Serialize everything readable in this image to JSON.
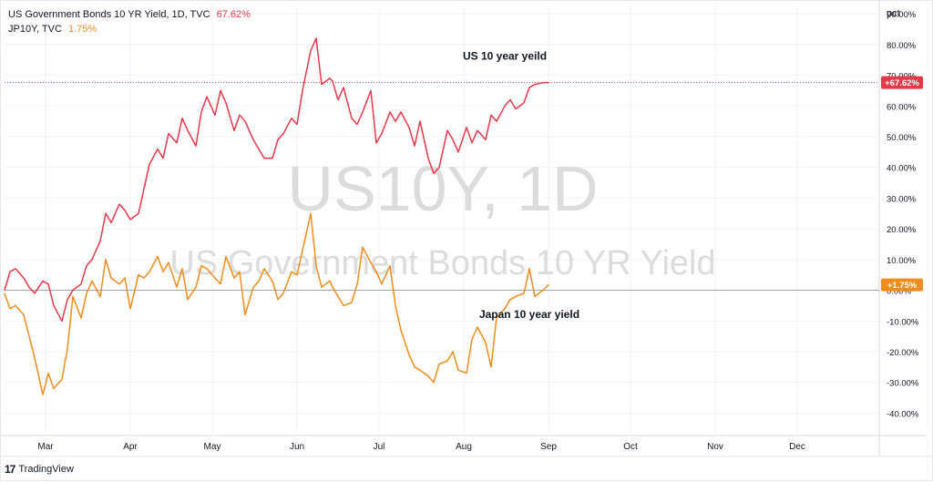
{
  "legend": {
    "us_label": "US Government Bonds 10 YR Yield, 1D, TVC",
    "us_value": "67.62%",
    "jp_label": "JP10Y, TVC",
    "jp_value": "1.75%"
  },
  "axis_unit": "pct",
  "brand": "TradingView",
  "watermark": {
    "line1": "US10Y, 1D",
    "line2": "US Government Bonds 10 YR Yield"
  },
  "colors": {
    "us": "#e5394a",
    "jp": "#f08c1e",
    "grid": "#f0f3fa",
    "axis_text": "#131722",
    "watermark": "#dcdcdc"
  },
  "chart_data": {
    "type": "line",
    "title": "",
    "xlabel": "",
    "ylabel": "pct",
    "ylim": [
      -47,
      93
    ],
    "y_ticks": [
      -40,
      -30,
      -20,
      -10,
      0,
      10,
      20,
      30,
      40,
      50,
      60,
      70,
      80,
      90
    ],
    "y_tick_labels": [
      "-40.00%",
      "-30.00%",
      "-20.00%",
      "-10.00%",
      "0.00%",
      "10.00%",
      "20.00%",
      "30.00%",
      "40.00%",
      "50.00%",
      "60.00%",
      "70.00%",
      "80.00%",
      "90.00%"
    ],
    "x_tick_labels": [
      "Mar",
      "Apr",
      "May",
      "Jun",
      "Jul",
      "Aug",
      "Sep",
      "Oct",
      "Nov",
      "Dec"
    ],
    "x_tick_dates": [
      "2022-03-01",
      "2022-04-01",
      "2022-05-01",
      "2022-06-01",
      "2022-07-01",
      "2022-08-01",
      "2022-09-01",
      "2022-10-01",
      "2022-11-01",
      "2022-12-01"
    ],
    "xlim": [
      "2022-02-14",
      "2022-12-31"
    ],
    "grid": true,
    "price_labels": [
      {
        "series": "US10Y",
        "text": "+67.62%",
        "value": 67.62
      },
      {
        "series": "JP10Y",
        "text": "+1.75%",
        "value": 1.75
      }
    ],
    "annotations": [
      {
        "text": "US 10 year yeild",
        "x": "2022-08-16",
        "y": 75
      },
      {
        "text": "Japan 10 year yield",
        "x": "2022-08-25",
        "y": -9
      }
    ],
    "series": [
      {
        "name": "US Government Bonds 10 YR Yield",
        "x": [
          "2022-02-14",
          "2022-02-16",
          "2022-02-18",
          "2022-02-21",
          "2022-02-23",
          "2022-02-25",
          "2022-02-28",
          "2022-03-02",
          "2022-03-04",
          "2022-03-07",
          "2022-03-09",
          "2022-03-11",
          "2022-03-14",
          "2022-03-16",
          "2022-03-18",
          "2022-03-21",
          "2022-03-23",
          "2022-03-25",
          "2022-03-28",
          "2022-03-30",
          "2022-04-01",
          "2022-04-04",
          "2022-04-06",
          "2022-04-08",
          "2022-04-11",
          "2022-04-13",
          "2022-04-15",
          "2022-04-18",
          "2022-04-20",
          "2022-04-22",
          "2022-04-25",
          "2022-04-27",
          "2022-04-29",
          "2022-05-02",
          "2022-05-04",
          "2022-05-06",
          "2022-05-09",
          "2022-05-11",
          "2022-05-13",
          "2022-05-16",
          "2022-05-18",
          "2022-05-20",
          "2022-05-23",
          "2022-05-25",
          "2022-05-27",
          "2022-05-30",
          "2022-06-01",
          "2022-06-03",
          "2022-06-06",
          "2022-06-08",
          "2022-06-10",
          "2022-06-13",
          "2022-06-14",
          "2022-06-16",
          "2022-06-18",
          "2022-06-21",
          "2022-06-23",
          "2022-06-25",
          "2022-06-28",
          "2022-06-30",
          "2022-07-02",
          "2022-07-05",
          "2022-07-07",
          "2022-07-09",
          "2022-07-12",
          "2022-07-14",
          "2022-07-16",
          "2022-07-19",
          "2022-07-21",
          "2022-07-23",
          "2022-07-26",
          "2022-07-28",
          "2022-07-30",
          "2022-08-02",
          "2022-08-04",
          "2022-08-06",
          "2022-08-09",
          "2022-08-11",
          "2022-08-13",
          "2022-08-16",
          "2022-08-18",
          "2022-08-20",
          "2022-08-23",
          "2022-08-25",
          "2022-08-27",
          "2022-08-30",
          "2022-09-01"
        ],
        "values": [
          0,
          6,
          7,
          4,
          1,
          -1,
          3,
          2,
          -5,
          -10,
          -3,
          0,
          2,
          8,
          10,
          16,
          25,
          22,
          28,
          26,
          23,
          25,
          33,
          41,
          46,
          43,
          51,
          48,
          56,
          52,
          47,
          58,
          63,
          57,
          65,
          61,
          52,
          57,
          55,
          49,
          46,
          43,
          43,
          49,
          51,
          56,
          54,
          65,
          78,
          82,
          67,
          69,
          68,
          62,
          66,
          56,
          54,
          58,
          65,
          48,
          51,
          58,
          55,
          58,
          53,
          47,
          55,
          43,
          38,
          40,
          52,
          49,
          45,
          53,
          48,
          52,
          49,
          57,
          55,
          60,
          62,
          59,
          61,
          66,
          67,
          67.62,
          67.62
        ]
      },
      {
        "name": "JP10Y",
        "x": [
          "2022-02-14",
          "2022-02-16",
          "2022-02-18",
          "2022-02-21",
          "2022-02-23",
          "2022-02-25",
          "2022-02-28",
          "2022-03-02",
          "2022-03-04",
          "2022-03-07",
          "2022-03-09",
          "2022-03-11",
          "2022-03-14",
          "2022-03-16",
          "2022-03-18",
          "2022-03-21",
          "2022-03-23",
          "2022-03-25",
          "2022-03-28",
          "2022-03-30",
          "2022-04-01",
          "2022-04-04",
          "2022-04-06",
          "2022-04-08",
          "2022-04-11",
          "2022-04-13",
          "2022-04-15",
          "2022-04-18",
          "2022-04-20",
          "2022-04-22",
          "2022-04-25",
          "2022-04-27",
          "2022-04-29",
          "2022-05-02",
          "2022-05-04",
          "2022-05-06",
          "2022-05-09",
          "2022-05-11",
          "2022-05-13",
          "2022-05-16",
          "2022-05-18",
          "2022-05-20",
          "2022-05-23",
          "2022-05-25",
          "2022-05-27",
          "2022-05-30",
          "2022-06-01",
          "2022-06-03",
          "2022-06-06",
          "2022-06-08",
          "2022-06-10",
          "2022-06-13",
          "2022-06-14",
          "2022-06-16",
          "2022-06-18",
          "2022-06-21",
          "2022-06-23",
          "2022-06-25",
          "2022-06-28",
          "2022-06-30",
          "2022-07-02",
          "2022-07-05",
          "2022-07-07",
          "2022-07-09",
          "2022-07-12",
          "2022-07-14",
          "2022-07-16",
          "2022-07-19",
          "2022-07-21",
          "2022-07-23",
          "2022-07-26",
          "2022-07-28",
          "2022-07-30",
          "2022-08-02",
          "2022-08-04",
          "2022-08-06",
          "2022-08-09",
          "2022-08-11",
          "2022-08-13",
          "2022-08-16",
          "2022-08-18",
          "2022-08-20",
          "2022-08-23",
          "2022-08-25",
          "2022-08-27",
          "2022-08-30",
          "2022-09-01"
        ],
        "values": [
          -1,
          -6,
          -5,
          -8,
          -15,
          -22,
          -34,
          -27,
          -32,
          -29,
          -19,
          -2,
          -9,
          -1,
          3,
          -2,
          10,
          4,
          2,
          4,
          -6,
          5,
          4,
          6,
          11,
          6,
          9,
          1,
          7,
          -3,
          1,
          8,
          7,
          4,
          2,
          11,
          4,
          6,
          -8,
          1,
          3,
          7,
          3,
          -3,
          -1,
          6,
          5,
          13,
          25,
          8,
          1,
          3,
          1,
          -2,
          -5,
          -4,
          2,
          14,
          9,
          6,
          2,
          8,
          -5,
          -13,
          -21,
          -25,
          -26,
          -28,
          -30,
          -24,
          -23,
          -20,
          -26,
          -27,
          -16,
          -12,
          -17,
          -25,
          -9,
          -6,
          -3,
          -2,
          -1,
          7,
          -2,
          0,
          1.75
        ]
      }
    ]
  }
}
